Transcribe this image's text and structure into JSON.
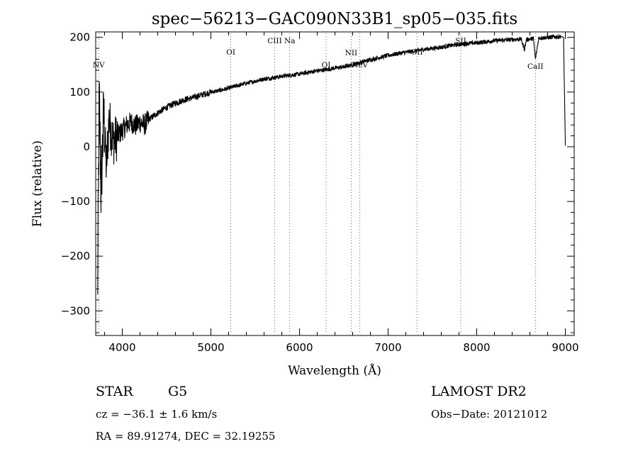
{
  "chart_data": {
    "type": "line",
    "title": "spec−56213−GAC090N33B1_sp05−035.fits",
    "xlabel": "Wavelength (Å)",
    "ylabel": "Flux (relative)",
    "xlim": [
      3700,
      9100
    ],
    "ylim": [
      -345,
      210
    ],
    "x_ticks": [
      4000,
      5000,
      6000,
      7000,
      8000,
      9000
    ],
    "x_tick_labels": [
      "4000",
      "5000",
      "6000",
      "7000",
      "8000",
      "9000"
    ],
    "y_ticks": [
      -300,
      -200,
      -100,
      0,
      100,
      200
    ],
    "y_tick_labels": [
      "−300",
      "−200",
      "−100",
      "0",
      "100",
      "200"
    ],
    "series": [
      {
        "x": [
          3720,
          3740,
          3760,
          3790,
          3820,
          3850,
          3900,
          3950,
          4000,
          4050,
          4100,
          4150,
          4200,
          4250,
          4300,
          4400,
          4500,
          4600,
          4700,
          4800,
          4900,
          5000,
          5100,
          5200,
          5300,
          5400,
          5500,
          5600,
          5700,
          5800,
          5900,
          6000,
          6100,
          6200,
          6300,
          6400,
          6500,
          6600,
          6700,
          6800,
          6900,
          7000,
          7100,
          7200,
          7300,
          7400,
          7500,
          7600,
          7700,
          7800,
          7900,
          8000,
          8100,
          8200,
          8300,
          8400,
          8500,
          8540,
          8560,
          8600,
          8640,
          8662,
          8700,
          8800,
          8900,
          8950,
          8980,
          8990,
          9000
        ],
        "y": [
          -290,
          90,
          -80,
          60,
          -40,
          50,
          10,
          20,
          30,
          40,
          45,
          38,
          45,
          40,
          50,
          62,
          72,
          80,
          86,
          90,
          95,
          100,
          103,
          107,
          112,
          116,
          120,
          124,
          126,
          129,
          131,
          133,
          136,
          139,
          141,
          144,
          146,
          150,
          155,
          159,
          163,
          167,
          170,
          173,
          175,
          178,
          180,
          182,
          185,
          187,
          189,
          190,
          192,
          194,
          195,
          196,
          197,
          178,
          196,
          197,
          198,
          160,
          199,
          200,
          201,
          202,
          200,
          100,
          2
        ]
      }
    ],
    "spectral_lines": [
      {
        "label": "NV",
        "x": 3734
      },
      {
        "label": "OI",
        "x": 5225
      },
      {
        "label": "CIII",
        "x": 5720
      },
      {
        "label": "Na",
        "x": 5890
      },
      {
        "label": "OI",
        "x": 6300
      },
      {
        "label": "NII",
        "x": 6583
      },
      {
        "label": "NeV",
        "x": 6680
      },
      {
        "label": "OII",
        "x": 7325
      },
      {
        "label": "SII",
        "x": 7820
      },
      {
        "label": "CaII",
        "x": 8662
      }
    ],
    "grid": false,
    "legend": "none"
  },
  "info": {
    "object_class": "STAR",
    "subclass": "G5",
    "survey": "LAMOST DR2",
    "redshift": "cz = −36.1 ± 1.6 km/s",
    "obs_date": "Obs−Date: 20121012",
    "coords": "RA =  89.91274, DEC =  32.19255"
  }
}
